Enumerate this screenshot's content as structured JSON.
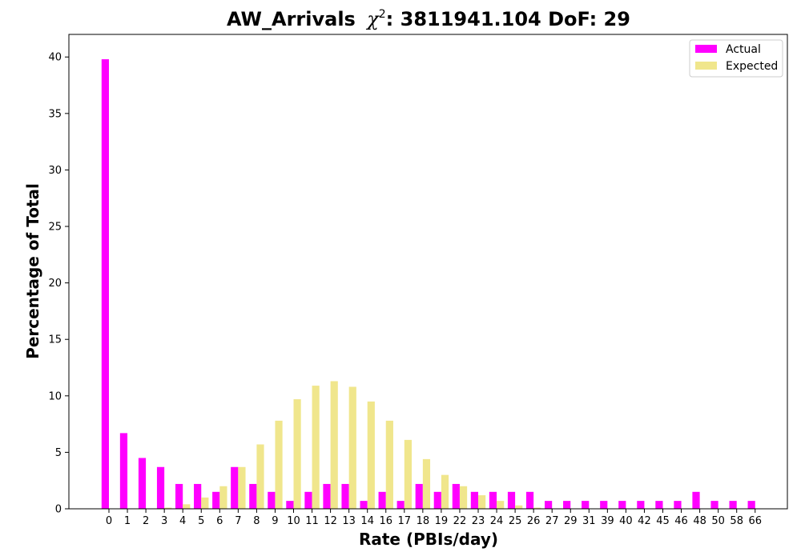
{
  "chart_data": {
    "type": "bar",
    "title": "AW_Arrivals",
    "title_stat": ": 3811941.104 DoF: 29",
    "xlabel": "Rate (PBIs/day)",
    "ylabel": "Percentage of Total",
    "ylim": [
      0,
      42
    ],
    "yticks": [
      0,
      5,
      10,
      15,
      20,
      25,
      30,
      35,
      40
    ],
    "grid": false,
    "legend_position": "top-right",
    "categories": [
      "0",
      "1",
      "2",
      "3",
      "4",
      "5",
      "6",
      "7",
      "8",
      "9",
      "10",
      "11",
      "12",
      "13",
      "14",
      "16",
      "17",
      "18",
      "19",
      "22",
      "23",
      "24",
      "25",
      "26",
      "27",
      "29",
      "31",
      "39",
      "40",
      "42",
      "45",
      "46",
      "48",
      "50",
      "58",
      "66"
    ],
    "series": [
      {
        "name": "Actual",
        "color": "#ff00ff",
        "values": [
          39.8,
          6.7,
          4.5,
          3.7,
          2.2,
          2.2,
          1.5,
          3.7,
          2.2,
          1.5,
          0.7,
          1.5,
          2.2,
          2.2,
          0.7,
          1.5,
          0.7,
          2.2,
          1.5,
          2.2,
          1.5,
          1.5,
          1.5,
          1.5,
          0.7,
          0.7,
          0.7,
          0.7,
          0.7,
          0.7,
          0.7,
          0.7,
          1.5,
          0.7,
          0.7,
          0.7
        ]
      },
      {
        "name": "Expected",
        "color": "#f0e68c",
        "values": [
          0.0,
          0.0,
          0.0,
          0.1,
          0.4,
          1.0,
          2.0,
          3.7,
          5.7,
          7.8,
          9.7,
          10.9,
          11.3,
          10.8,
          9.5,
          7.8,
          6.1,
          4.4,
          3.0,
          2.0,
          1.2,
          0.7,
          0.3,
          0.1,
          0.0,
          0.0,
          0.0,
          0.0,
          0.0,
          0.0,
          0.0,
          0.0,
          0.0,
          0.0,
          0.0,
          0.0
        ]
      }
    ]
  }
}
